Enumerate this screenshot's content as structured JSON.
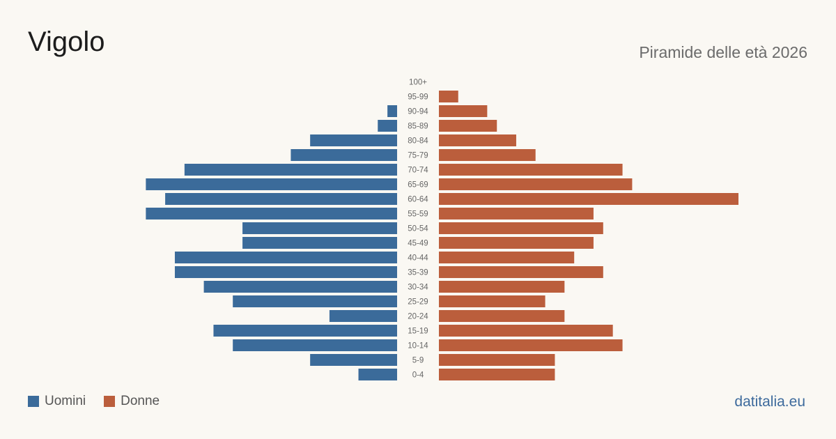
{
  "header": {
    "title": "Vigolo",
    "subtitle": "Piramide delle età 2026"
  },
  "legend": {
    "items": [
      {
        "label": "Uomini",
        "color": "#3b6b9a"
      },
      {
        "label": "Donne",
        "color": "#bb5e3c"
      }
    ]
  },
  "footer": {
    "brand": "datitalia.eu"
  },
  "chart_data": {
    "type": "bar",
    "orientation": "horizontal-pyramid",
    "categories": [
      "100+",
      "95-99",
      "90-94",
      "85-89",
      "80-84",
      "75-79",
      "70-74",
      "65-69",
      "60-64",
      "55-59",
      "50-54",
      "45-49",
      "40-44",
      "35-39",
      "30-34",
      "25-29",
      "20-24",
      "15-19",
      "10-14",
      "5-9",
      "0-4"
    ],
    "series": [
      {
        "name": "Uomini",
        "color": "#3b6b9a",
        "values": [
          0,
          0,
          1,
          2,
          9,
          11,
          22,
          26,
          24,
          26,
          16,
          16,
          23,
          23,
          20,
          17,
          7,
          19,
          17,
          9,
          4
        ]
      },
      {
        "name": "Donne",
        "color": "#bb5e3c",
        "values": [
          0,
          2,
          5,
          6,
          8,
          10,
          19,
          20,
          31,
          16,
          17,
          16,
          14,
          17,
          13,
          11,
          13,
          18,
          19,
          12,
          12
        ]
      }
    ],
    "xlim": [
      0,
      31
    ]
  }
}
